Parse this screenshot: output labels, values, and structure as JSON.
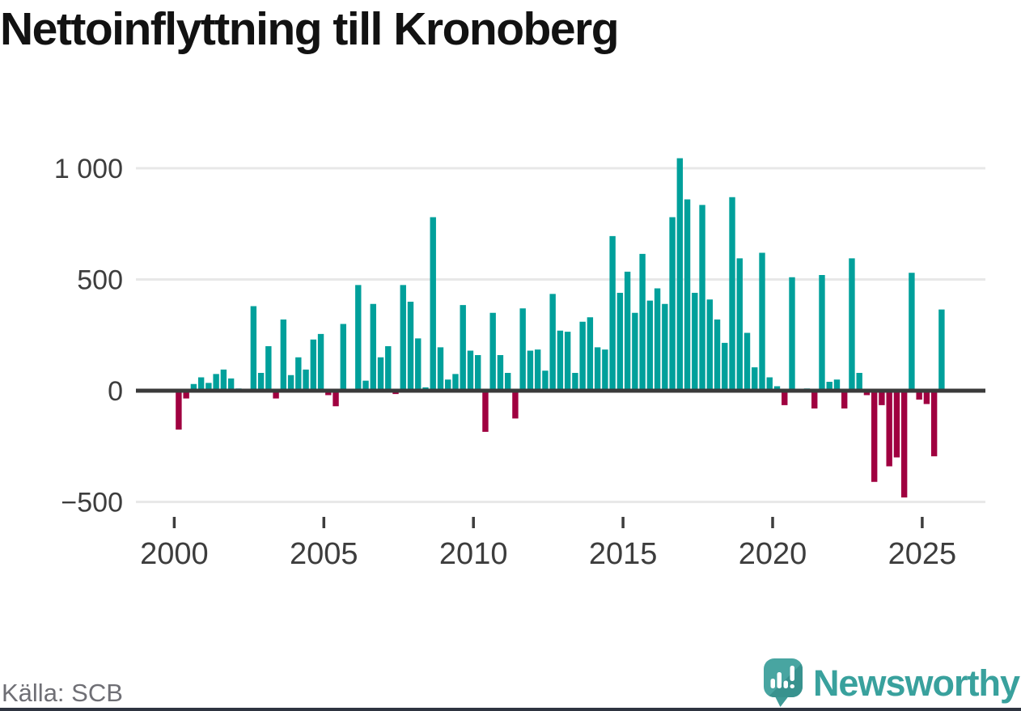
{
  "title": "Nettoinflyttning till Kronoberg",
  "source_label": "Källa: SCB",
  "logo": {
    "brand": "Newsworthy"
  },
  "colors": {
    "positive_bar": "#00a09b",
    "negative_bar": "#a00040",
    "grid_line": "#e8e8e8",
    "zero_line": "#3a3a3a",
    "axis_text": "#3d3d3d",
    "title_text": "#121212",
    "source_text": "#6f6f75",
    "brand_teal": "#39a19d",
    "bottom_strip": "#2e3440"
  },
  "chart_data": {
    "type": "bar",
    "title": "Nettoinflyttning till Kronoberg",
    "xlabel": "",
    "ylabel": "",
    "frequency": "quarterly",
    "start_period": "2000-Q1",
    "end_period": "2025-Q3",
    "ylim": [
      -500,
      1050
    ],
    "grid": "horizontal",
    "y_ticks": [
      {
        "value": 1000,
        "label": "1 000"
      },
      {
        "value": 500,
        "label": "500"
      },
      {
        "value": 0,
        "label": "0"
      },
      {
        "value": -500,
        "label": "−500"
      }
    ],
    "x_ticks": [
      {
        "year": 2000,
        "label": "2000"
      },
      {
        "year": 2005,
        "label": "2005"
      },
      {
        "year": 2010,
        "label": "2010"
      },
      {
        "year": 2015,
        "label": "2015"
      },
      {
        "year": 2020,
        "label": "2020"
      },
      {
        "year": 2025,
        "label": "2025"
      }
    ],
    "series": [
      {
        "year": 2000,
        "quarters": [
          -175,
          -35,
          30,
          60
        ]
      },
      {
        "year": 2001,
        "quarters": [
          35,
          75,
          95,
          55
        ]
      },
      {
        "year": 2002,
        "quarters": [
          10,
          0,
          380,
          80
        ]
      },
      {
        "year": 2003,
        "quarters": [
          200,
          -35,
          320,
          70
        ]
      },
      {
        "year": 2004,
        "quarters": [
          150,
          95,
          230,
          255
        ]
      },
      {
        "year": 2005,
        "quarters": [
          -20,
          -70,
          300,
          0
        ]
      },
      {
        "year": 2006,
        "quarters": [
          475,
          45,
          390,
          150
        ]
      },
      {
        "year": 2007,
        "quarters": [
          200,
          -15,
          475,
          400
        ]
      },
      {
        "year": 2008,
        "quarters": [
          235,
          15,
          780,
          195
        ]
      },
      {
        "year": 2009,
        "quarters": [
          50,
          75,
          385,
          180
        ]
      },
      {
        "year": 2010,
        "quarters": [
          160,
          -185,
          350,
          160
        ]
      },
      {
        "year": 2011,
        "quarters": [
          80,
          -125,
          370,
          180
        ]
      },
      {
        "year": 2012,
        "quarters": [
          185,
          90,
          435,
          270
        ]
      },
      {
        "year": 2013,
        "quarters": [
          265,
          80,
          310,
          330
        ]
      },
      {
        "year": 2014,
        "quarters": [
          195,
          185,
          695,
          440
        ]
      },
      {
        "year": 2015,
        "quarters": [
          535,
          350,
          615,
          405
        ]
      },
      {
        "year": 2016,
        "quarters": [
          460,
          390,
          780,
          1045
        ]
      },
      {
        "year": 2017,
        "quarters": [
          860,
          440,
          835,
          410
        ]
      },
      {
        "year": 2018,
        "quarters": [
          320,
          215,
          870,
          595
        ]
      },
      {
        "year": 2019,
        "quarters": [
          260,
          105,
          620,
          60
        ]
      },
      {
        "year": 2020,
        "quarters": [
          20,
          -65,
          510,
          0
        ]
      },
      {
        "year": 2021,
        "quarters": [
          10,
          -80,
          520,
          40
        ]
      },
      {
        "year": 2022,
        "quarters": [
          50,
          -80,
          595,
          80
        ]
      },
      {
        "year": 2023,
        "quarters": [
          -20,
          -410,
          -65,
          -340
        ]
      },
      {
        "year": 2024,
        "quarters": [
          -300,
          -480,
          530,
          -40
        ]
      },
      {
        "year": 2025,
        "quarters": [
          -60,
          -295,
          365
        ]
      }
    ]
  }
}
